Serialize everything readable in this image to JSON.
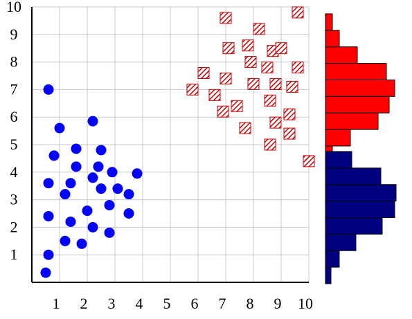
{
  "chart_data": {
    "type": "scatter",
    "title": "",
    "xlabel": "",
    "ylabel": "",
    "xlim": [
      0,
      10
    ],
    "ylim": [
      0,
      10
    ],
    "x_ticks": [
      "1",
      "2",
      "3",
      "4",
      "5",
      "6",
      "7",
      "8",
      "9",
      "10"
    ],
    "y_ticks": [
      "1",
      "2",
      "3",
      "4",
      "5",
      "6",
      "7",
      "8",
      "9",
      "10"
    ],
    "grid": true,
    "legend": "none",
    "series": [
      {
        "marker": "circle",
        "color": "#0000ff",
        "points": [
          [
            0.6,
            7.0
          ],
          [
            1.0,
            5.6
          ],
          [
            2.2,
            5.85
          ],
          [
            0.8,
            4.6
          ],
          [
            1.6,
            4.85
          ],
          [
            2.5,
            4.8
          ],
          [
            1.6,
            4.2
          ],
          [
            2.4,
            4.2
          ],
          [
            0.6,
            3.6
          ],
          [
            1.4,
            3.6
          ],
          [
            2.2,
            3.8
          ],
          [
            2.9,
            4.0
          ],
          [
            3.8,
            3.95
          ],
          [
            1.2,
            3.2
          ],
          [
            2.5,
            3.4
          ],
          [
            3.1,
            3.4
          ],
          [
            3.5,
            3.2
          ],
          [
            2.8,
            2.8
          ],
          [
            2.0,
            2.6
          ],
          [
            0.6,
            2.4
          ],
          [
            1.4,
            2.2
          ],
          [
            2.2,
            2.0
          ],
          [
            3.5,
            2.5
          ],
          [
            2.8,
            1.8
          ],
          [
            1.2,
            1.5
          ],
          [
            1.8,
            1.4
          ],
          [
            0.6,
            1.0
          ],
          [
            0.5,
            0.35
          ]
        ]
      },
      {
        "marker": "hatched-square",
        "color": "#cc0000",
        "points": [
          [
            7.0,
            9.6
          ],
          [
            9.6,
            9.8
          ],
          [
            8.2,
            9.2
          ],
          [
            7.1,
            8.5
          ],
          [
            7.8,
            8.6
          ],
          [
            8.7,
            8.4
          ],
          [
            9.0,
            8.5
          ],
          [
            7.9,
            8.0
          ],
          [
            8.5,
            7.8
          ],
          [
            9.6,
            7.8
          ],
          [
            6.2,
            7.6
          ],
          [
            7.0,
            7.4
          ],
          [
            8.0,
            7.2
          ],
          [
            8.8,
            7.2
          ],
          [
            9.4,
            7.1
          ],
          [
            5.8,
            7.0
          ],
          [
            6.6,
            6.8
          ],
          [
            8.6,
            6.6
          ],
          [
            7.4,
            6.4
          ],
          [
            6.9,
            6.2
          ],
          [
            9.3,
            6.1
          ],
          [
            8.8,
            5.8
          ],
          [
            7.7,
            5.6
          ],
          [
            9.3,
            5.4
          ],
          [
            8.6,
            5.0
          ],
          [
            10.0,
            4.4
          ]
        ]
      }
    ],
    "marginal_histogram": {
      "orientation": "horizontal",
      "bin_width": 0.6,
      "value_max": 5.5,
      "series": [
        {
          "color": "#ff0000",
          "bins": [
            {
              "y0": 4.35,
              "count": 0.5
            },
            {
              "y0": 4.95,
              "count": 1.8
            },
            {
              "y0": 5.55,
              "count": 3.8
            },
            {
              "y0": 6.15,
              "count": 4.6
            },
            {
              "y0": 6.75,
              "count": 5.0
            },
            {
              "y0": 7.35,
              "count": 4.4
            },
            {
              "y0": 7.95,
              "count": 2.3
            },
            {
              "y0": 8.55,
              "count": 1.0
            },
            {
              "y0": 9.15,
              "count": 0.5
            }
          ]
        },
        {
          "color": "#000080",
          "bins": [
            {
              "y0": -0.05,
              "count": 0.4
            },
            {
              "y0": 0.55,
              "count": 1.0
            },
            {
              "y0": 1.15,
              "count": 2.2
            },
            {
              "y0": 1.75,
              "count": 4.1
            },
            {
              "y0": 2.35,
              "count": 5.0
            },
            {
              "y0": 2.95,
              "count": 5.1
            },
            {
              "y0": 3.55,
              "count": 4.0
            },
            {
              "y0": 4.15,
              "count": 1.9
            }
          ]
        }
      ]
    }
  }
}
